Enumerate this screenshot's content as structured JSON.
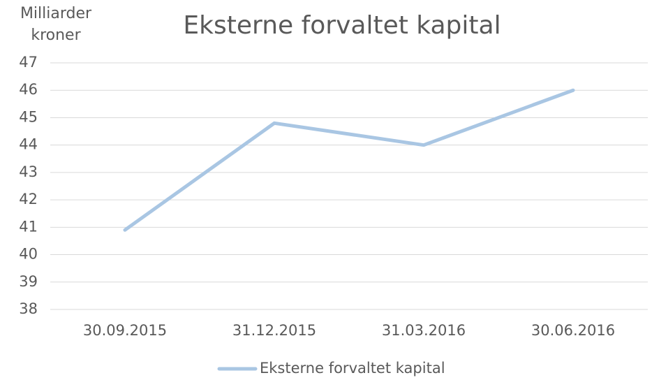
{
  "chart_data": {
    "type": "line",
    "title": "Eksterne forvaltet kapital",
    "y_label": "Milliarder kroner",
    "categories": [
      "30.09.2015",
      "31.12.2015",
      "31.03.2016",
      "30.06.2016"
    ],
    "series": [
      {
        "name": "Eksterne forvaltet kapital",
        "color": "#a9c6e3",
        "values": [
          40.9,
          44.8,
          44.0,
          46.0
        ]
      }
    ],
    "ylim": [
      38,
      47
    ],
    "yticks": [
      38,
      39,
      40,
      41,
      42,
      43,
      44,
      45,
      46,
      47
    ],
    "grid": true,
    "legend": "bottom"
  }
}
